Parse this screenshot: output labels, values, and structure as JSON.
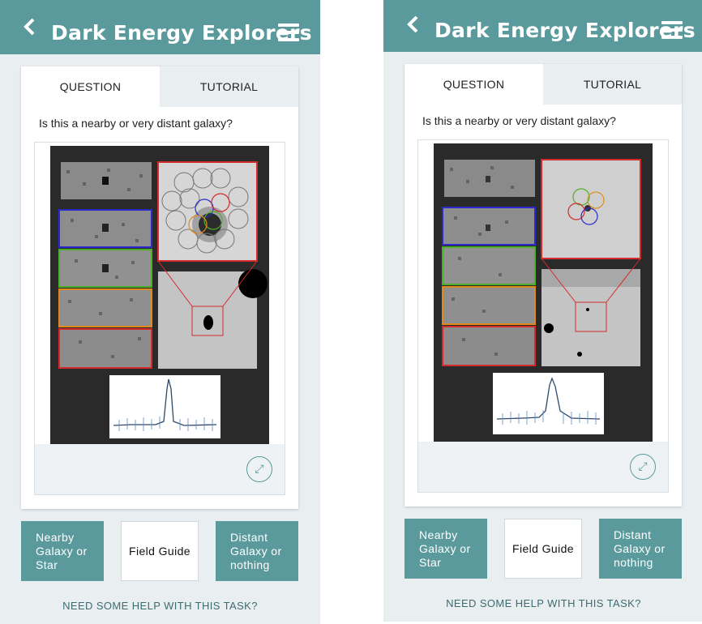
{
  "colors": {
    "accent": "#5a9a9c",
    "panel_bg": "#e9eef1",
    "help_text": "#3e6b70"
  },
  "panels": [
    {
      "header": {
        "title": "Dark Energy Explorers",
        "back_icon": "chevron-left-icon",
        "menu_icon": "hamburger-menu-icon"
      },
      "tabs": {
        "question": "QUESTION",
        "tutorial": "TUTORIAL"
      },
      "question_text": "Is this a nearby or very distant galaxy?",
      "expand_icon": "expand-icon",
      "answers": {
        "nearby": "Nearby Galaxy or Star",
        "field_guide": "Field Guide",
        "distant": "Distant Galaxy or nothing"
      },
      "help": "NEED SOME HELP WITH THIS TASK?"
    },
    {
      "header": {
        "title": "Dark Energy Explorers",
        "back_icon": "chevron-left-icon",
        "menu_icon": "hamburger-menu-icon"
      },
      "tabs": {
        "question": "QUESTION",
        "tutorial": "TUTORIAL"
      },
      "question_text": "Is this a nearby or very distant galaxy?",
      "expand_icon": "expand-icon",
      "answers": {
        "nearby": "Nearby Galaxy or Star",
        "field_guide": "Field Guide",
        "distant": "Distant Galaxy or nothing"
      },
      "help": "NEED SOME HELP WITH THIS TASK?"
    }
  ]
}
